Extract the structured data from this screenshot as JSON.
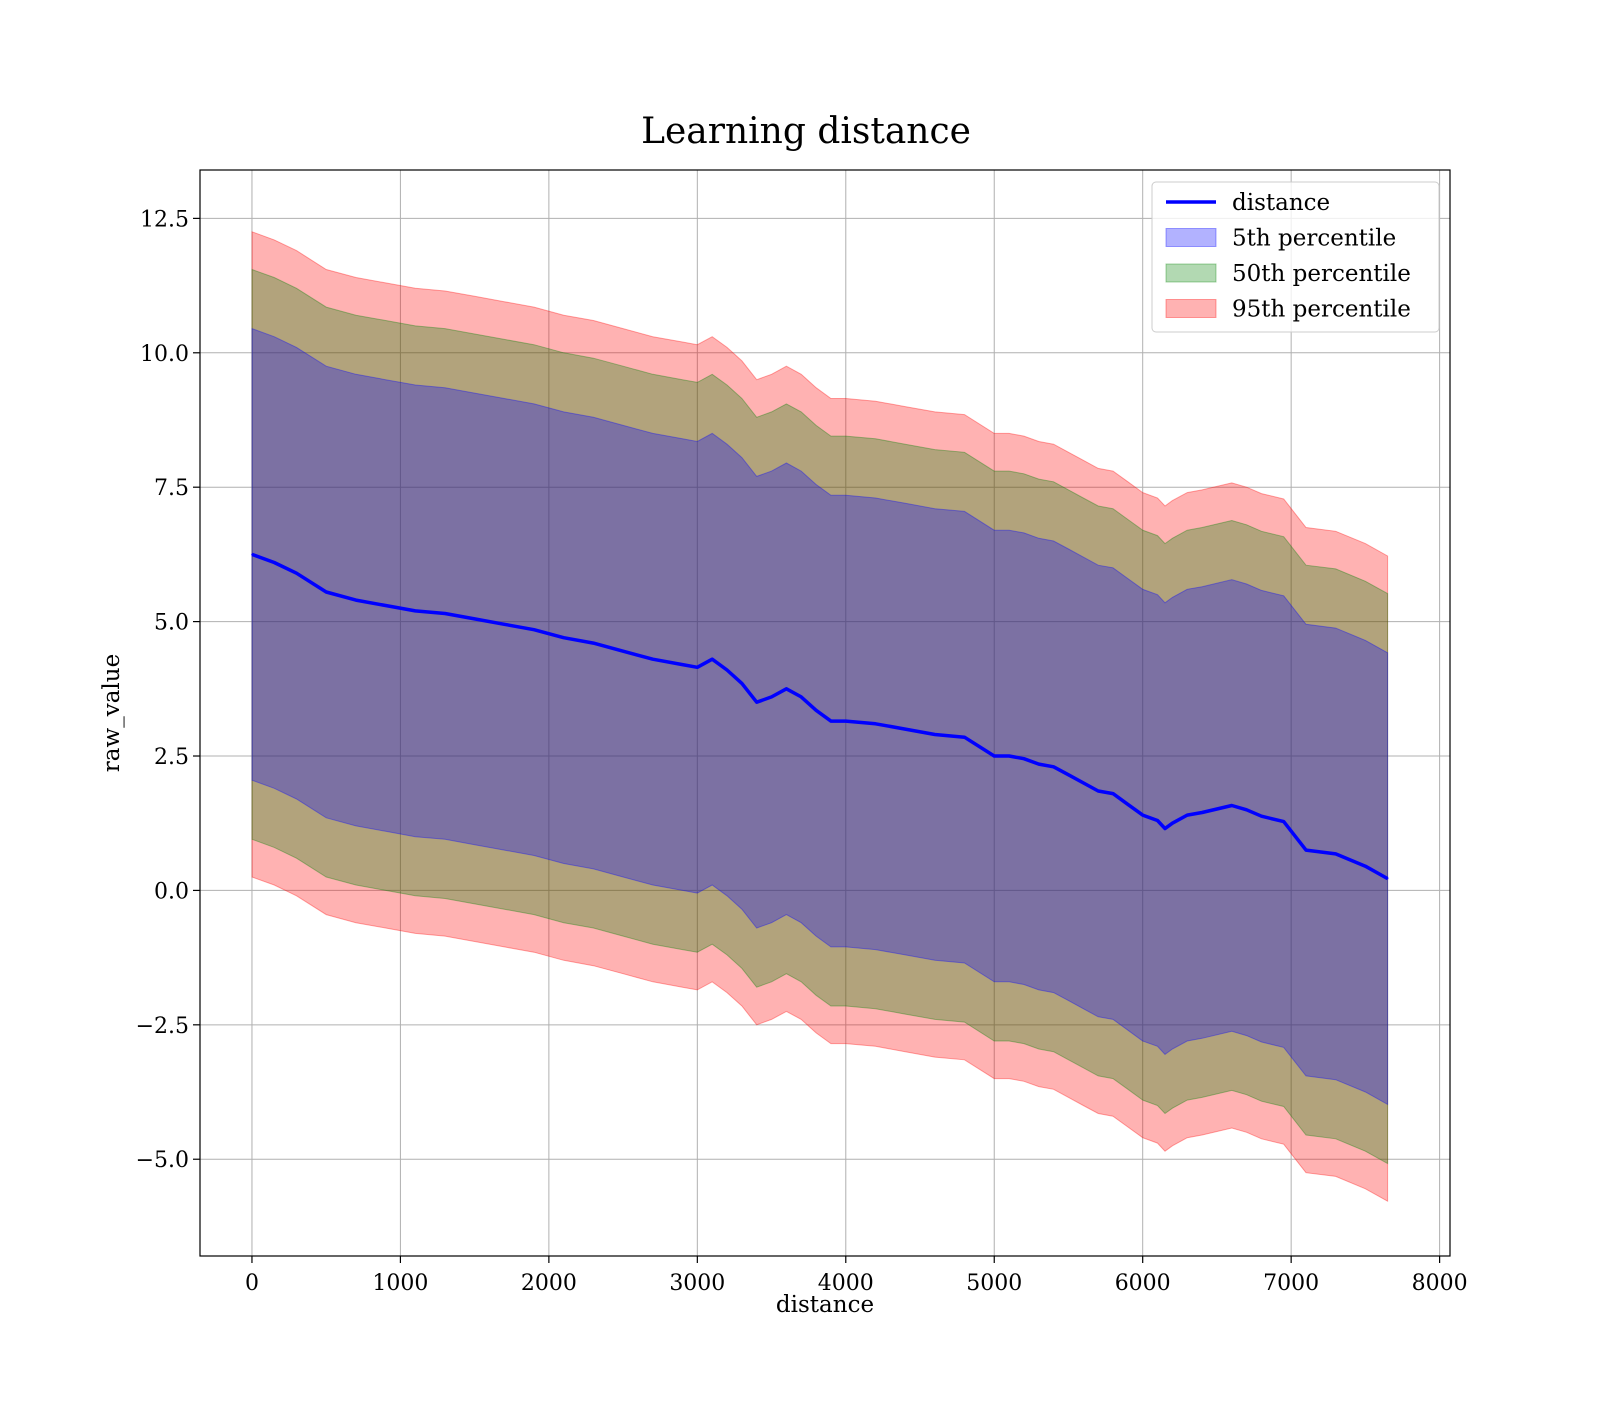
{
  "chart_data": {
    "type": "area",
    "title": "Learning distance",
    "xlabel": "distance",
    "ylabel": "raw_value",
    "xlim": [
      -350,
      8070
    ],
    "ylim": [
      -6.8,
      13.4
    ],
    "xticks": [
      0,
      1000,
      2000,
      3000,
      4000,
      5000,
      6000,
      7000,
      8000
    ],
    "xtick_labels": [
      "0",
      "1000",
      "2000",
      "3000",
      "4000",
      "5000",
      "6000",
      "7000",
      "8000"
    ],
    "yticks": [
      -5,
      -2.5,
      0,
      2.5,
      5,
      7.5,
      10,
      12.5
    ],
    "ytick_labels": [
      "−5.0",
      "−2.5",
      "0.0",
      "2.5",
      "5.0",
      "7.5",
      "10.0",
      "12.5"
    ],
    "grid": true,
    "legend_position": "top-right",
    "legend": [
      {
        "label": "distance",
        "kind": "line",
        "color": "#0000ff"
      },
      {
        "label": "5th percentile",
        "kind": "patch",
        "color": "#0000ff"
      },
      {
        "label": "50th percentile",
        "kind": "patch",
        "color": "#008000"
      },
      {
        "label": "95th percentile",
        "kind": "patch",
        "color": "#ff0000"
      }
    ],
    "x": [
      0,
      150,
      300,
      500,
      700,
      900,
      1100,
      1300,
      1500,
      1700,
      1900,
      2100,
      2300,
      2500,
      2700,
      2900,
      3000,
      3100,
      3200,
      3300,
      3400,
      3500,
      3600,
      3700,
      3800,
      3900,
      4000,
      4200,
      4400,
      4600,
      4800,
      5000,
      5100,
      5200,
      5300,
      5400,
      5500,
      5600,
      5700,
      5800,
      5900,
      6000,
      6100,
      6150,
      6200,
      6300,
      6400,
      6600,
      6700,
      6800,
      6950,
      7100,
      7300,
      7500,
      7650
    ],
    "series": [
      {
        "name": "distance",
        "values": [
          6.25,
          6.1,
          5.9,
          5.55,
          5.4,
          5.3,
          5.2,
          5.15,
          5.05,
          4.95,
          4.85,
          4.7,
          4.6,
          4.45,
          4.3,
          4.2,
          4.15,
          4.3,
          4.1,
          3.85,
          3.5,
          3.6,
          3.75,
          3.6,
          3.35,
          3.15,
          3.15,
          3.1,
          3.0,
          2.9,
          2.85,
          2.5,
          2.5,
          2.45,
          2.35,
          2.3,
          2.15,
          2.0,
          1.85,
          1.8,
          1.6,
          1.4,
          1.3,
          1.15,
          1.25,
          1.4,
          1.45,
          1.58,
          1.5,
          1.38,
          1.28,
          0.75,
          0.68,
          0.45,
          0.22
        ]
      },
      {
        "name": "5th percentile",
        "lower": [
          2.05,
          1.9,
          1.7,
          1.35,
          1.2,
          1.1,
          1.0,
          0.95,
          0.85,
          0.75,
          0.65,
          0.5,
          0.4,
          0.25,
          0.1,
          0.0,
          -0.05,
          0.1,
          -0.1,
          -0.35,
          -0.7,
          -0.6,
          -0.45,
          -0.6,
          -0.85,
          -1.05,
          -1.05,
          -1.1,
          -1.2,
          -1.3,
          -1.35,
          -1.7,
          -1.7,
          -1.75,
          -1.85,
          -1.9,
          -2.05,
          -2.2,
          -2.35,
          -2.4,
          -2.6,
          -2.8,
          -2.9,
          -3.05,
          -2.95,
          -2.8,
          -2.75,
          -2.62,
          -2.7,
          -2.82,
          -2.92,
          -3.45,
          -3.52,
          -3.75,
          -3.98
        ],
        "upper": [
          10.45,
          10.3,
          10.1,
          9.75,
          9.6,
          9.5,
          9.4,
          9.35,
          9.25,
          9.15,
          9.05,
          8.9,
          8.8,
          8.65,
          8.5,
          8.4,
          8.35,
          8.5,
          8.3,
          8.05,
          7.7,
          7.8,
          7.95,
          7.8,
          7.55,
          7.35,
          7.35,
          7.3,
          7.2,
          7.1,
          7.05,
          6.7,
          6.7,
          6.65,
          6.55,
          6.5,
          6.35,
          6.2,
          6.05,
          6.0,
          5.8,
          5.6,
          5.5,
          5.35,
          5.45,
          5.6,
          5.65,
          5.78,
          5.7,
          5.58,
          5.48,
          4.95,
          4.88,
          4.65,
          4.42
        ]
      },
      {
        "name": "50th percentile",
        "lower": [
          0.95,
          0.8,
          0.6,
          0.25,
          0.1,
          0.0,
          -0.1,
          -0.15,
          -0.25,
          -0.35,
          -0.45,
          -0.6,
          -0.7,
          -0.85,
          -1.0,
          -1.1,
          -1.15,
          -1.0,
          -1.2,
          -1.45,
          -1.8,
          -1.7,
          -1.55,
          -1.7,
          -1.95,
          -2.15,
          -2.15,
          -2.2,
          -2.3,
          -2.4,
          -2.45,
          -2.8,
          -2.8,
          -2.85,
          -2.95,
          -3.0,
          -3.15,
          -3.3,
          -3.45,
          -3.5,
          -3.7,
          -3.9,
          -4.0,
          -4.15,
          -4.05,
          -3.9,
          -3.85,
          -3.72,
          -3.8,
          -3.92,
          -4.02,
          -4.55,
          -4.62,
          -4.85,
          -5.08
        ],
        "upper": [
          11.55,
          11.4,
          11.2,
          10.85,
          10.7,
          10.6,
          10.5,
          10.45,
          10.35,
          10.25,
          10.15,
          10.0,
          9.9,
          9.75,
          9.6,
          9.5,
          9.45,
          9.6,
          9.4,
          9.15,
          8.8,
          8.9,
          9.05,
          8.9,
          8.65,
          8.45,
          8.45,
          8.4,
          8.3,
          8.2,
          8.15,
          7.8,
          7.8,
          7.75,
          7.65,
          7.6,
          7.45,
          7.3,
          7.15,
          7.1,
          6.9,
          6.7,
          6.6,
          6.45,
          6.55,
          6.7,
          6.75,
          6.88,
          6.8,
          6.68,
          6.58,
          6.05,
          5.98,
          5.75,
          5.52
        ]
      },
      {
        "name": "95th percentile",
        "lower": [
          0.25,
          0.1,
          -0.1,
          -0.45,
          -0.6,
          -0.7,
          -0.8,
          -0.85,
          -0.95,
          -1.05,
          -1.15,
          -1.3,
          -1.4,
          -1.55,
          -1.7,
          -1.8,
          -1.85,
          -1.7,
          -1.9,
          -2.15,
          -2.5,
          -2.4,
          -2.25,
          -2.4,
          -2.65,
          -2.85,
          -2.85,
          -2.9,
          -3.0,
          -3.1,
          -3.15,
          -3.5,
          -3.5,
          -3.55,
          -3.65,
          -3.7,
          -3.85,
          -4.0,
          -4.15,
          -4.2,
          -4.4,
          -4.6,
          -4.7,
          -4.85,
          -4.75,
          -4.6,
          -4.55,
          -4.42,
          -4.5,
          -4.62,
          -4.72,
          -5.25,
          -5.32,
          -5.55,
          -5.78
        ],
        "upper": [
          12.25,
          12.1,
          11.9,
          11.55,
          11.4,
          11.3,
          11.2,
          11.15,
          11.05,
          10.95,
          10.85,
          10.7,
          10.6,
          10.45,
          10.3,
          10.2,
          10.15,
          10.3,
          10.1,
          9.85,
          9.5,
          9.6,
          9.75,
          9.6,
          9.35,
          9.15,
          9.15,
          9.1,
          9.0,
          8.9,
          8.85,
          8.5,
          8.5,
          8.45,
          8.35,
          8.3,
          8.15,
          8.0,
          7.85,
          7.8,
          7.6,
          7.4,
          7.3,
          7.15,
          7.25,
          7.4,
          7.45,
          7.58,
          7.5,
          7.38,
          7.28,
          6.75,
          6.68,
          6.45,
          6.22
        ]
      }
    ]
  }
}
